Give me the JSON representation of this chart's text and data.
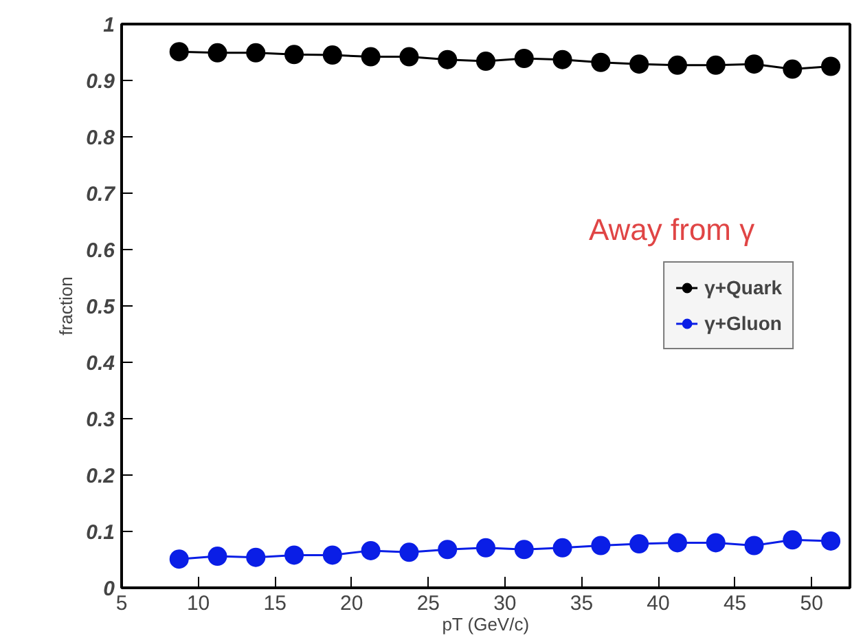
{
  "chart_data": {
    "type": "line",
    "xlabel": "pT (GeV/c)",
    "ylabel": "fraction",
    "x": [
      8.75,
      11.25,
      13.75,
      16.25,
      18.75,
      21.25,
      23.75,
      26.25,
      28.75,
      31.25,
      33.75,
      36.25,
      38.75,
      41.25,
      43.75,
      46.25,
      48.75,
      51.25
    ],
    "series": [
      {
        "name": "γ+Quark",
        "color": "#000000",
        "values": [
          0.951,
          0.949,
          0.949,
          0.946,
          0.945,
          0.942,
          0.942,
          0.937,
          0.934,
          0.939,
          0.937,
          0.932,
          0.929,
          0.927,
          0.927,
          0.929,
          0.92,
          0.925
        ]
      },
      {
        "name": "γ+Gluon",
        "color": "#0a1ee6",
        "values": [
          0.051,
          0.056,
          0.054,
          0.058,
          0.058,
          0.066,
          0.063,
          0.068,
          0.071,
          0.068,
          0.071,
          0.075,
          0.078,
          0.08,
          0.08,
          0.075,
          0.085,
          0.083
        ]
      }
    ],
    "xlim": [
      5,
      52.5
    ],
    "xticks": [
      5,
      10,
      15,
      20,
      25,
      30,
      35,
      40,
      45,
      50
    ],
    "ylim": [
      0,
      1
    ],
    "yticks": [
      0,
      0.1,
      0.2,
      0.3,
      0.4,
      0.5,
      0.6,
      0.7,
      0.8,
      0.9,
      1
    ],
    "annotations": [
      "Away from γ"
    ],
    "legend": "right",
    "marker": "circle",
    "line_style": "solid",
    "grid": false
  }
}
